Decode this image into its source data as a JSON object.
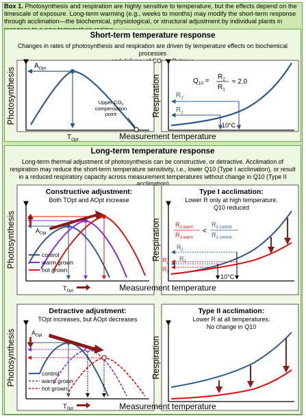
{
  "box": {
    "label": "Box 1.",
    "intro": "Photosynthesis and respiration are highly sensitive to temperature, but the effects depend on the timescale of exposure. Long-term warming (e.g., weeks to months) may modify the short-term response through acclimation—the biochemical, physiological, or structural adjustment by individual plants in response to a new temperature regime."
  },
  "short": {
    "title": "Short-term temperature response",
    "desc_line1": "Changes in rates of photosynthesis and respiration are driven by temperature effects on biochemical processes",
    "desc_line2_pre": "and delivery of CO",
    "desc_line2_sub": "2",
    "desc_line2_post": " to Rubisco",
    "photo_ylabel": "Photosynthesis",
    "aopt": "A",
    "aopt_sub": "Opt",
    "topt": "T",
    "topt_sub": "Opt",
    "co2_line1": "Upper CO",
    "co2_sub": "2",
    "co2_line2": "compensation",
    "co2_line3": "point",
    "resp_ylabel": "Respiration",
    "q10_label": "Q",
    "q10_sub": "10",
    "q10_eq": "=",
    "q10_num": "R",
    "q10_num_sub": "2",
    "q10_den": "R",
    "q10_den_sub": "1",
    "q10_val": "≈ 2.0",
    "r2": "R",
    "r2_sub": "2",
    "r1": "R",
    "r1_sub": "1",
    "ten_c": "10°C",
    "xlabel": "Measurement temperature"
  },
  "long": {
    "title": "Long-term temperature response",
    "desc": "Long-term thermal adjustment of photosynthesis can be constructive, or detractive. Acclimation of respiration may reduce the short-term temperature sensitivity, i.e., lower Q10 (Type I acclimation), or result in a reduced respiratory capacity across measurement temperatures without change in Q10 (Type II acclimation)",
    "constructive_title": "Constructive adjustment:",
    "constructive_sub": "Both TOpt and AOpt increase",
    "detractive_title": "Detractive adjustment:",
    "detractive_sub": "TOpt increases, but AOpt decreases",
    "type1_title": "Type I acclimation:",
    "type1_sub1": "Lower R only at high temperature.",
    "type1_sub2": "Q10 reduced",
    "type2_title": "Type II acclimation:",
    "type2_sub1": "Lower R at all temperatures.",
    "type2_sub2": "No change in Q10",
    "photo_ylabel": "Photosynthesis",
    "resp_ylabel": "Respiration",
    "aopt": "A",
    "aopt_sub": "Opt",
    "topt": "T",
    "topt_sub": "Opt",
    "r2warm": "R",
    "r2warm_sub": "2 warm",
    "r1warm": "R",
    "r1warm_sub": "1 warm",
    "r2ctrl": "R",
    "r2ctrl_sub": "2 control",
    "r1ctrl": "R",
    "r1ctrl_sub": "1 control",
    "lt": "<",
    "r2": "R",
    "r2_sub": "2",
    "r1": "R",
    "r1_sub": "1",
    "ten_c": "10°C",
    "xlabel": "Measurement temperature",
    "legend_control": "control",
    "legend_warm": "warm grown",
    "legend_hot": "hot grown"
  },
  "colors": {
    "control": "#2e5a8a",
    "warm": "#8a2be2",
    "hot": "#e01010",
    "panel_border": "#6aa84f",
    "box_bg": "#cfe8b0",
    "panel_bg": "#eef7e2",
    "arrow_dark": "#8b1a1a"
  }
}
